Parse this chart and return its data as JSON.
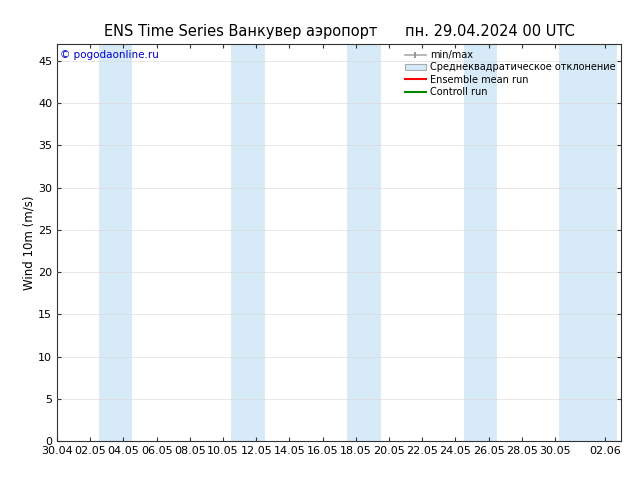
{
  "title": "ENS Time Series Ванкувер аэропорт",
  "date_label": "пн. 29.04.2024 00 UTC",
  "ylabel": "Wind 10m (m/s)",
  "copyright": "© pogodaonline.ru",
  "ylim": [
    0,
    47
  ],
  "yticks": [
    0,
    5,
    10,
    15,
    20,
    25,
    30,
    35,
    40,
    45
  ],
  "xlim_start": 0,
  "xlim_end": 34,
  "xtick_positions": [
    0,
    2,
    4,
    6,
    8,
    10,
    12,
    14,
    16,
    18,
    20,
    22,
    24,
    26,
    28,
    30,
    33
  ],
  "xtick_labels": [
    "30.04",
    "02.05",
    "04.05",
    "06.05",
    "08.05",
    "10.05",
    "12.05",
    "14.05",
    "16.05",
    "18.05",
    "20.05",
    "22.05",
    "24.05",
    "26.05",
    "28.05",
    "30.05",
    "02.06"
  ],
  "band_positions": [
    3.5,
    11.5,
    18.5,
    25.5,
    32
  ],
  "band_widths": [
    2.0,
    2.0,
    2.0,
    2.0,
    3.5
  ],
  "band_color": "#d6eaf8",
  "background_color": "#ffffff",
  "grid_color": "#dddddd",
  "title_fontsize": 10.5,
  "axis_fontsize": 8.5,
  "tick_fontsize": 8,
  "legend_entries": [
    "min/max",
    "Среднеквадратическое отклонение",
    "Ensemble mean run",
    "Controll run"
  ],
  "legend_line_colors": [
    "#aabccc",
    "#aabccc",
    "#ff0000",
    "#008800"
  ],
  "legend_fill_colors": [
    "#ffffff",
    "#d6eaf8",
    null,
    null
  ],
  "copyright_color": "#0000cc"
}
